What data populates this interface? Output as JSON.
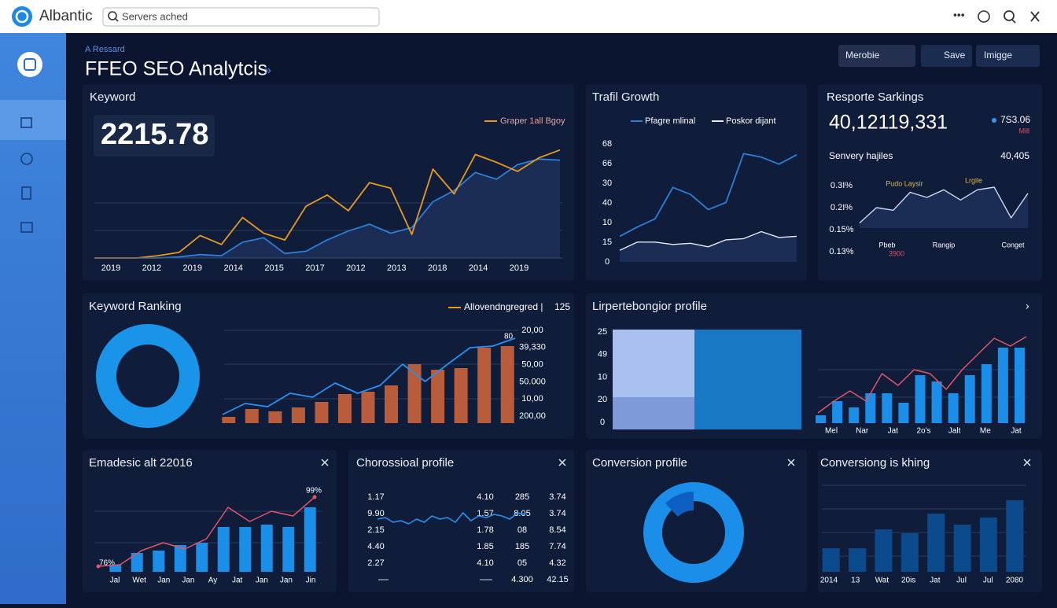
{
  "topbar": {
    "brand": "Albantic",
    "search": "Servers ached"
  },
  "header": {
    "eyebrow": "A Ressard",
    "title": "FFEO SEO Analytcis",
    "buttons": [
      "Merobie",
      "Save",
      "Imigge"
    ]
  },
  "keyword": {
    "title": "Keyword",
    "kpi": "2215.78",
    "legend": "Graper 1all Bgoy",
    "x_labels": [
      "2019",
      "2012",
      "2019",
      "2014",
      "2015",
      "2017",
      "2012",
      "2013",
      "2018",
      "2014",
      "2019"
    ],
    "series": [
      {
        "color": "#e89a1c",
        "values": [
          0,
          0,
          0,
          2,
          5,
          20,
          12,
          36,
          22,
          16,
          46,
          56,
          42,
          67,
          62,
          21,
          79,
          57,
          92,
          85,
          77,
          89,
          96
        ]
      },
      {
        "color": "#2b7fd8",
        "values": [
          0,
          0,
          0,
          0,
          1,
          3,
          2,
          14,
          18,
          4,
          6,
          16,
          24,
          30,
          22,
          27,
          50,
          60,
          76,
          70,
          83,
          88,
          87
        ]
      }
    ]
  },
  "traffic": {
    "title": "Trafil Growth",
    "y_labels": [
      "68",
      "66",
      "30",
      "40",
      "10",
      "15",
      "0"
    ],
    "series": [
      {
        "name": "Pfagre mlinal",
        "color": "#2b7fd8",
        "values": [
          22,
          30,
          37,
          64,
          58,
          45,
          51,
          93,
          90,
          84,
          92
        ]
      },
      {
        "name": "Poskor dijant",
        "color": "#e6ecf7",
        "values": [
          10,
          17,
          17,
          15,
          16,
          13,
          19,
          20,
          26,
          21,
          22
        ]
      }
    ]
  },
  "reports": {
    "title": "Resporte Sarkings",
    "kpi": "40,12119,331",
    "badge": "7S3.06",
    "badge_sub": "Mill",
    "subtitle": "Senvery hajiles",
    "subtitle_value": "40,405",
    "y_labels": [
      "0.3I%",
      "0.2I%",
      "0.15%",
      "0.13%"
    ],
    "annotations": [
      "Pudo Laysir",
      "Lrgile",
      "Pbeb",
      "Rangip",
      "Conget",
      "3900"
    ],
    "values": [
      10,
      40,
      35,
      70,
      60,
      75,
      55,
      75,
      80,
      20,
      68
    ]
  },
  "ranking": {
    "title": "Keyword Ranking",
    "legend": "Allovendngregred |",
    "legend_value": "125",
    "peak_label": "80",
    "right_labels": [
      "20,00",
      "39,330",
      "50,00",
      "50.000",
      "10,00",
      "200,00"
    ],
    "bars": [
      8,
      18,
      15,
      20,
      27,
      37,
      40,
      48,
      75,
      68,
      70,
      96,
      98
    ],
    "line": [
      11,
      25,
      21,
      38,
      33,
      51,
      38,
      48,
      75,
      53,
      75,
      96,
      98,
      108
    ]
  },
  "profile": {
    "title": "Lirpertebongior profile",
    "y_labels": [
      "25",
      "49",
      "10",
      "20",
      "0"
    ],
    "x_labels": [
      "Mel",
      "Nar",
      "Jat",
      "2o's",
      "Jalt",
      "Me",
      "Jat"
    ],
    "bars": [
      10,
      28,
      20,
      38,
      38,
      26,
      61,
      53,
      38,
      61,
      75,
      96,
      96
    ],
    "line": [
      13,
      28,
      41,
      28,
      63,
      48,
      68,
      63,
      43,
      68,
      88,
      108,
      98,
      110
    ]
  },
  "emadesic": {
    "title": "Emadesic alt 22016",
    "start_label": "76%",
    "end_label": "99%",
    "x_labels": [
      "Jal",
      "Wet",
      "Jan",
      "Jan",
      "Ay",
      "Jat",
      "Jan",
      "Jan",
      "Jin"
    ],
    "bars": [
      9,
      24,
      27,
      34,
      37,
      57,
      57,
      60,
      57,
      82
    ],
    "line": [
      7,
      9,
      27,
      37,
      29,
      42,
      82,
      64,
      77,
      71,
      95
    ]
  },
  "chorossioal": {
    "title": "Chorossioal profile",
    "columns": [
      [
        "1.17",
        "9.90",
        "2.15",
        "4.40",
        "2.27"
      ],
      [
        "4.10",
        "1.57",
        "1.78",
        "1.85",
        "4.10"
      ],
      [
        "285",
        "8.05",
        "08",
        "185",
        "05",
        "4.300"
      ],
      [
        "3.74",
        "3.74",
        "8.54",
        "7.74",
        "4.32",
        "42.15"
      ]
    ],
    "line": [
      50,
      55,
      40,
      45,
      35,
      50,
      40,
      60,
      50,
      55,
      40,
      70,
      45,
      60,
      55,
      65,
      60,
      50,
      70,
      65
    ]
  },
  "conversion": {
    "title": "Conversion profile"
  },
  "conversiong": {
    "title": "Conversiong is khing",
    "x_labels": [
      "2014",
      "13",
      "Wat",
      "20is",
      "Jat",
      "Jul",
      "Jul",
      "2080"
    ],
    "bars": [
      30,
      30,
      54,
      49,
      74,
      60,
      69,
      91
    ]
  }
}
